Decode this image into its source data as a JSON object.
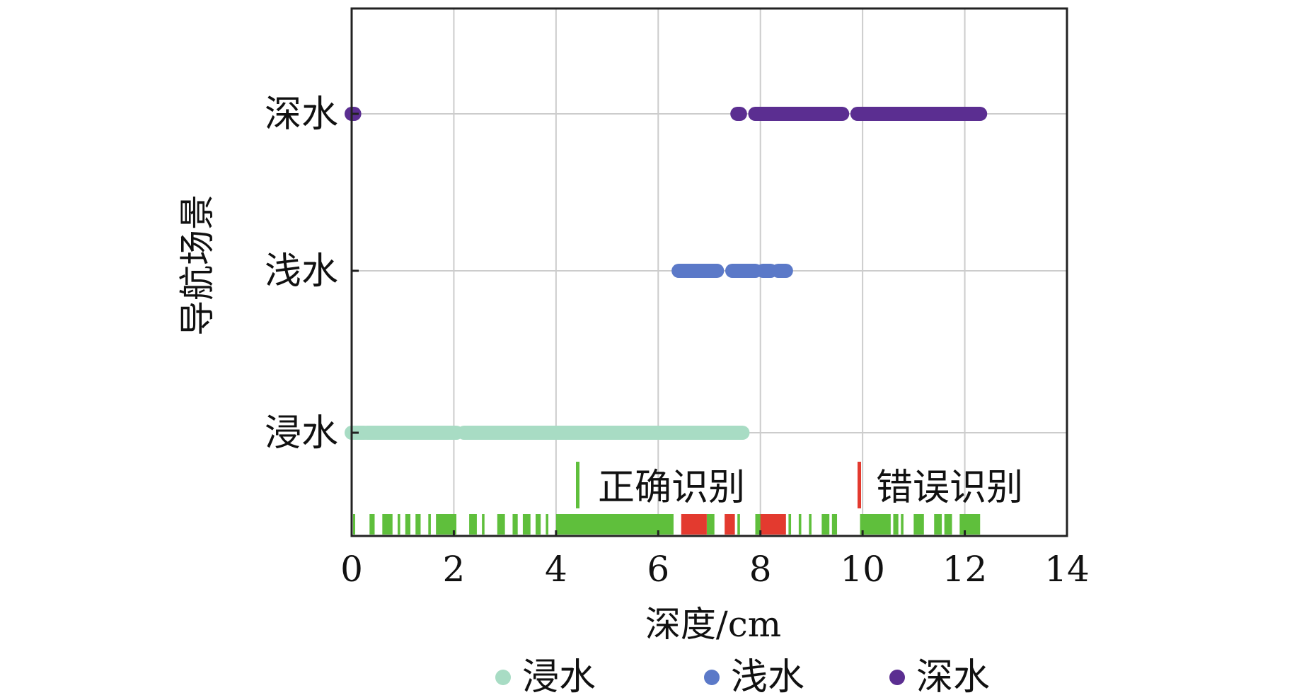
{
  "chart_data": {
    "type": "scatter",
    "xlabel": "深度/cm",
    "ylabel": "导航场景",
    "xlim": [
      0,
      14
    ],
    "xticks": [
      0,
      2,
      4,
      6,
      8,
      10,
      12,
      14
    ],
    "categories": [
      "浸水",
      "浅水",
      "深水"
    ],
    "grid": true,
    "legend": {
      "position": "bottom",
      "entries": [
        "浸水",
        "浅水",
        "深水"
      ]
    },
    "colors": {
      "浸水": "#a8dcc4",
      "浅水": "#5b79c8",
      "深水": "#5b2e91",
      "correct": "#5fbf3c",
      "error": "#e33a2f"
    },
    "series": [
      {
        "name": "浸水",
        "segments": [
          [
            0,
            0.25
          ],
          [
            0.3,
            2.05
          ],
          [
            2.2,
            7.65
          ]
        ]
      },
      {
        "name": "浅水",
        "segments": [
          [
            6.4,
            7.15
          ],
          [
            7.45,
            7.9
          ],
          [
            8.05,
            8.2
          ],
          [
            8.35,
            8.5
          ]
        ]
      },
      {
        "name": "深水",
        "segments": [
          [
            0,
            0.05
          ],
          [
            7.55,
            7.6
          ],
          [
            7.9,
            9.6
          ],
          [
            9.9,
            12.3
          ]
        ]
      }
    ],
    "recognition": {
      "legend": [
        {
          "label": "正确识别",
          "type": "correct"
        },
        {
          "label": "错误识别",
          "type": "error"
        }
      ],
      "correct_segments": [
        [
          0,
          0.05
        ],
        [
          0.35,
          0.45
        ],
        [
          0.6,
          0.8
        ],
        [
          0.9,
          0.95
        ],
        [
          1.05,
          1.15
        ],
        [
          1.25,
          1.35
        ],
        [
          1.5,
          1.55
        ],
        [
          1.65,
          2.05
        ],
        [
          2.3,
          2.45
        ],
        [
          2.55,
          2.6
        ],
        [
          2.85,
          3.0
        ],
        [
          3.15,
          3.25
        ],
        [
          3.35,
          3.5
        ],
        [
          3.6,
          3.7
        ],
        [
          3.8,
          3.85
        ],
        [
          4.0,
          6.3
        ],
        [
          6.95,
          7.1
        ],
        [
          7.55,
          7.6
        ],
        [
          7.9,
          8.05
        ],
        [
          8.55,
          8.6
        ],
        [
          8.75,
          8.8
        ],
        [
          8.95,
          9.0
        ],
        [
          9.2,
          9.35
        ],
        [
          9.4,
          9.5
        ],
        [
          9.95,
          10.55
        ],
        [
          10.6,
          10.7
        ],
        [
          10.75,
          10.8
        ],
        [
          11.0,
          11.2
        ],
        [
          11.4,
          11.55
        ],
        [
          11.6,
          11.75
        ],
        [
          11.9,
          12.3
        ]
      ],
      "error_segments": [
        [
          6.45,
          6.95
        ],
        [
          7.3,
          7.5
        ],
        [
          8.0,
          8.5
        ]
      ]
    }
  }
}
